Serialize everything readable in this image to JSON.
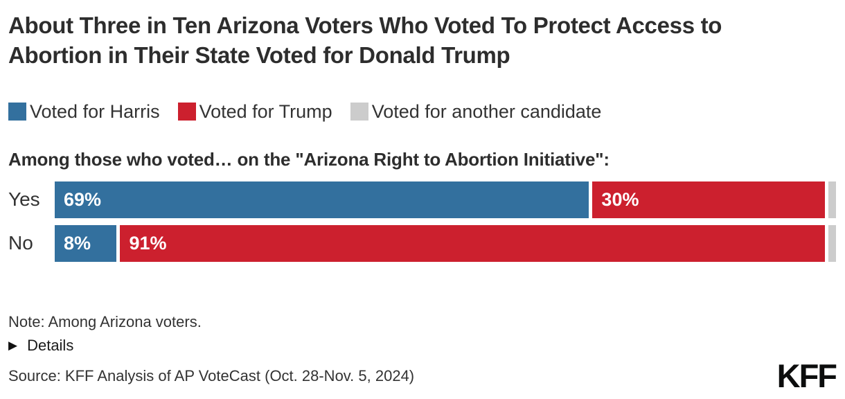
{
  "title": "About Three in Ten Arizona Voters Who Voted To Protect Access to Abortion in Their State Voted for Donald Trump",
  "legend": [
    {
      "label": "Voted for Harris",
      "color": "#33709e"
    },
    {
      "label": "Voted for Trump",
      "color": "#cc202e"
    },
    {
      "label": "Voted for another candidate",
      "color": "#cccccc"
    }
  ],
  "subtitle": "Among those who voted… on the \"Arizona Right to Abortion Initiative\":",
  "chart_data": {
    "type": "bar",
    "orientation": "horizontal",
    "stacked": true,
    "title": "About Three in Ten Arizona Voters Who Voted To Protect Access to Abortion in Their State Voted for Donald Trump",
    "categories": [
      "Yes",
      "No"
    ],
    "series": [
      {
        "name": "Voted for Harris",
        "color": "#33709e",
        "values": [
          69,
          8
        ],
        "labels": [
          "69%",
          "8%"
        ]
      },
      {
        "name": "Voted for Trump",
        "color": "#cc202e",
        "values": [
          30,
          91
        ],
        "labels": [
          "30%",
          "91%"
        ]
      },
      {
        "name": "Voted for another candidate",
        "color": "#cccccc",
        "values": [
          1,
          1
        ],
        "labels": [
          "",
          ""
        ]
      }
    ],
    "xlim": [
      0,
      100
    ],
    "grid": false,
    "legend_position": "top",
    "value_label_color": "#ffffff"
  },
  "note": "Note: Among Arizona voters.",
  "details": {
    "label": "Details",
    "icon": "triangle-right"
  },
  "source": "Source: KFF Analysis of AP VoteCast (Oct. 28-Nov. 5, 2024)",
  "logo": "KFF"
}
